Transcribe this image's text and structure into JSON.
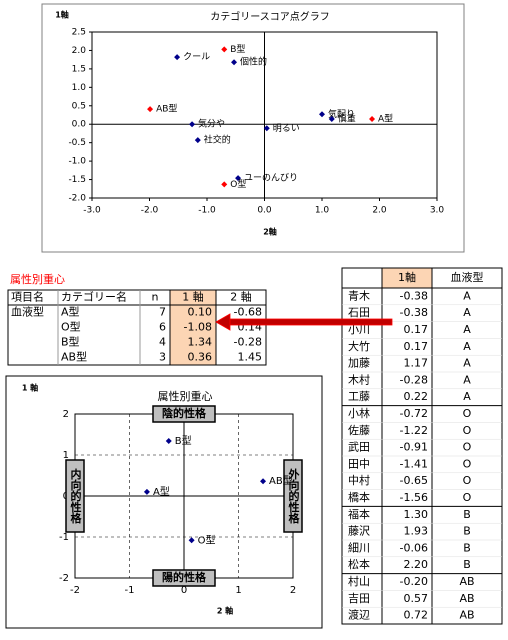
{
  "chart_data": [
    {
      "type": "scatter",
      "title": "カテゴリースコア点グラフ",
      "y_label": "1軸",
      "x_label": "2軸",
      "xlim": [
        -3,
        3
      ],
      "xticks": [
        {
          "value": -3,
          "label": "-3.0"
        },
        {
          "value": -2,
          "label": "-2.0"
        },
        {
          "value": -1,
          "label": "-1.0"
        },
        {
          "value": 0,
          "label": "0.0"
        },
        {
          "value": 1,
          "label": "1.0"
        },
        {
          "value": 2,
          "label": "2.0"
        },
        {
          "value": 3,
          "label": "3.0"
        }
      ],
      "ylim": [
        -2,
        2.5
      ],
      "yticks": [
        {
          "value": -2,
          "label": "-2.0"
        },
        -1.5,
        {
          "value": -1,
          "label": "-1.0"
        },
        -0.5,
        {
          "value": 0,
          "label": "0.0"
        },
        0.5,
        {
          "value": 1,
          "label": "1.0"
        },
        1.5,
        {
          "value": 2,
          "label": "2.0"
        },
        2.5
      ],
      "grid": false,
      "series": [
        {
          "color": "#00008b",
          "marker": "diamond",
          "labels": [
            "クール",
            "個性的",
            "気分や",
            "社交的",
            "明るい",
            "気配り",
            "慎重",
            "ユーのんびり"
          ],
          "x": [
            -1.52,
            -0.53,
            -1.26,
            -1.16,
            0.04,
            1.0,
            1.17,
            -0.46
          ],
          "y": [
            1.82,
            1.68,
            0.0,
            -0.43,
            -0.11,
            0.27,
            0.14,
            -1.46
          ]
        },
        {
          "color": "#ff0000",
          "marker": "diamond",
          "labels": [
            "B型",
            "AB型",
            "A型",
            "O型"
          ],
          "x": [
            -0.7,
            -1.99,
            1.87,
            -0.7
          ],
          "y": [
            2.03,
            0.41,
            0.14,
            -1.63
          ]
        }
      ]
    },
    {
      "type": "scatter",
      "title": "属性別重心",
      "y_label": "1 軸",
      "x_label": "2 軸",
      "xlim": [
        -2,
        2
      ],
      "xticks": [
        -2,
        -1,
        0,
        1,
        2
      ],
      "ylim": [
        -2,
        2
      ],
      "yticks": [
        -2,
        -1,
        0,
        1,
        2
      ],
      "grid": true,
      "series": [
        {
          "color": "#00008b",
          "marker": "diamond",
          "labels": [
            "A型",
            "O型",
            "B型",
            "AB型"
          ],
          "x": [
            -0.68,
            0.14,
            -0.28,
            1.45
          ],
          "y": [
            0.1,
            -1.08,
            1.34,
            0.36
          ]
        }
      ],
      "annotations": [
        {
          "text": "陰的性格",
          "position": "top"
        },
        {
          "text": "陽的性格",
          "position": "bottom"
        },
        {
          "text": "内向的性格",
          "position": "left"
        },
        {
          "text": "外向的性格",
          "position": "right"
        }
      ]
    }
  ],
  "centroid_table": {
    "title": "属性別重心",
    "headers": [
      "項目名",
      "カテゴリー名",
      "n",
      "1 軸",
      "2 軸"
    ],
    "group": "血液型",
    "rows": [
      [
        "A型",
        "7",
        "0.10",
        "-0.68"
      ],
      [
        "O型",
        "6",
        "-1.08",
        "0.14"
      ],
      [
        "B型",
        "4",
        "1.34",
        "-0.28"
      ],
      [
        "AB型",
        "3",
        "0.36",
        "1.45"
      ]
    ]
  },
  "score_table": {
    "headers": [
      "1軸",
      "血液型"
    ],
    "rows": [
      [
        "青木",
        "-0.38",
        "A"
      ],
      [
        "石田",
        "-0.38",
        "A"
      ],
      [
        "小川",
        "0.17",
        "A"
      ],
      [
        "大竹",
        "0.17",
        "A"
      ],
      [
        "加藤",
        "1.17",
        "A"
      ],
      [
        "木村",
        "-0.28",
        "A"
      ],
      [
        "工藤",
        "0.22",
        "A"
      ],
      [
        "小林",
        "-0.72",
        "O"
      ],
      [
        "佐藤",
        "-1.22",
        "O"
      ],
      [
        "武田",
        "-0.91",
        "O"
      ],
      [
        "田中",
        "-1.41",
        "O"
      ],
      [
        "中村",
        "-0.65",
        "O"
      ],
      [
        "橋本",
        "-1.56",
        "O"
      ],
      [
        "福本",
        "1.30",
        "B"
      ],
      [
        "藤沢",
        "1.93",
        "B"
      ],
      [
        "細川",
        "-0.06",
        "B"
      ],
      [
        "松本",
        "2.20",
        "B"
      ],
      [
        "村山",
        "-0.20",
        "AB"
      ],
      [
        "吉田",
        "0.57",
        "AB"
      ],
      [
        "渡辺",
        "0.72",
        "AB"
      ]
    ]
  }
}
